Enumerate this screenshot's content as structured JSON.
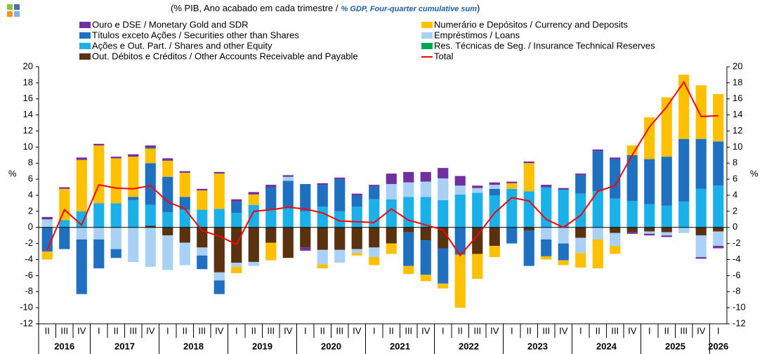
{
  "chart_data": {
    "type": "stacked_bar_line",
    "title": "(% PIB, Ano acabado em cada trimestre  /",
    "subtitle": "% GDP, Four-quarter cumulative sum",
    "title_end": ")",
    "ylabel": "%",
    "y2label": "%",
    "categories": [
      "II",
      "III",
      "IV",
      "I",
      "II",
      "III",
      "IV",
      "I",
      "II",
      "III",
      "IV",
      "I",
      "II",
      "III",
      "IV",
      "I",
      "II",
      "III",
      "IV",
      "I",
      "II",
      "III",
      "IV",
      "I",
      "II",
      "III",
      "IV",
      "I",
      "II",
      "III",
      "IV",
      "I",
      "II",
      "III",
      "IV",
      "I",
      "II",
      "III",
      "IV",
      "I"
    ],
    "year_labels": [
      "2016",
      "2017",
      "2018",
      "2019",
      "2020",
      "2021",
      "2022",
      "2023",
      "2024",
      "2025",
      "2026"
    ],
    "ylim": [
      -12,
      20
    ],
    "yticks": [
      -12,
      -10,
      -8,
      -6,
      -4,
      -2,
      0,
      2,
      4,
      6,
      8,
      10,
      12,
      14,
      16,
      18,
      20
    ],
    "y2lim": [
      -12,
      20
    ],
    "y2ticks": [
      -12,
      -10,
      -8,
      -6,
      -4,
      -2,
      0,
      2,
      4,
      6,
      8,
      10,
      12,
      14,
      16,
      18,
      20
    ],
    "series": [
      {
        "name": "Ouro e DSE / Monetary Gold and SDR",
        "color": "#7030a0",
        "values": [
          0.3,
          0.2,
          0.3,
          0.2,
          0.2,
          0.3,
          0.3,
          0.3,
          0.2,
          0.2,
          0.2,
          0.3,
          0.3,
          0.3,
          0.2,
          -0.4,
          0.2,
          0.2,
          0.2,
          0.2,
          1.3,
          1.3,
          1.2,
          1.3,
          1.2,
          0.3,
          0.3,
          0.2,
          0.2,
          0.3,
          0.2,
          0.2,
          0.2,
          0.2,
          -0.2,
          -0.2,
          -0.2,
          0,
          -0.2,
          -0.3
        ]
      },
      {
        "name": "Títulos exceto Ações / Securities other than Shares",
        "color": "#1f70c1",
        "values": [
          -3.0,
          -2.7,
          -6.8,
          -3.6,
          -1.1,
          0.4,
          5.2,
          4.4,
          1.6,
          -1.7,
          -1.7,
          1.4,
          0,
          2.8,
          3.4,
          3.4,
          2.7,
          4.0,
          1.4,
          1.6,
          0,
          -4.2,
          -4.3,
          -4.4,
          -3.4,
          0,
          0.8,
          -2.0,
          -4.4,
          -2.1,
          -2.1,
          2.3,
          5.0,
          4.9,
          5.7,
          5.6,
          6.1,
          7.8,
          6.2,
          5.5
        ]
      },
      {
        "name": "Ações e Out. Part. / Shares and other Equity",
        "color": "#1ab0ea",
        "values": [
          0,
          0.9,
          2.0,
          3.0,
          3.0,
          3.4,
          2.6,
          1.9,
          2.2,
          2.2,
          2.3,
          1.8,
          2.8,
          2.2,
          2.4,
          2.0,
          2.6,
          2.0,
          2.6,
          3.5,
          3.5,
          3.8,
          3.8,
          3.4,
          4.1,
          4.3,
          4.0,
          4.8,
          4.5,
          5.0,
          4.7,
          4.2,
          4.5,
          3.6,
          3.3,
          2.9,
          2.7,
          3.2,
          4.8,
          5.2
        ]
      },
      {
        "name": "Out. Débitos e Créditos / Other Accounts Receivable and Payable",
        "color": "#5b3210",
        "values": [
          0,
          0,
          0,
          0,
          0,
          0,
          0.2,
          -1.0,
          -1.9,
          -2.5,
          -5.6,
          -4.4,
          -4.3,
          -1.9,
          -3.8,
          -2.5,
          -2.8,
          -2.8,
          -2.7,
          -2.5,
          -2.0,
          -0.6,
          -1.6,
          -2.6,
          0,
          -3.3,
          -2.3,
          0,
          -0.4,
          0,
          0,
          -1.3,
          0,
          -0.7,
          -0.6,
          -0.5,
          -0.6,
          0,
          -1.0,
          -0.5
        ]
      },
      {
        "name": "Numerário e Depósitos / Currency and Deposits",
        "color": "#ffc000",
        "values": [
          -1.0,
          3.9,
          6.4,
          7.2,
          5.6,
          5.0,
          1.8,
          2.0,
          3.0,
          2.4,
          4.4,
          -0.8,
          1.3,
          -2.2,
          0,
          0,
          -0.5,
          0,
          -0.3,
          -1.0,
          -1.3,
          -1.0,
          -0.8,
          -0.6,
          -6.6,
          -3.1,
          -1.4,
          0.7,
          3.5,
          -0.4,
          -0.6,
          -1.8,
          -3.6,
          -1.0,
          1.2,
          5.2,
          7.4,
          8.0,
          6.7,
          5.9
        ]
      },
      {
        "name": "Empréstimos / Loans",
        "color": "#a9d0f5",
        "values": [
          1.0,
          0,
          -1.5,
          -1.5,
          -2.7,
          -4.3,
          -4.9,
          -4.3,
          -2.8,
          -1.0,
          -1.0,
          -0.5,
          -0.5,
          0,
          0.5,
          0,
          -1.8,
          -1.6,
          -0.5,
          -1.2,
          1.9,
          1.8,
          1.9,
          2.7,
          1.1,
          0.6,
          0.5,
          0,
          0,
          -1.5,
          -2.0,
          -1.9,
          -1.5,
          -1.6,
          0,
          -0.3,
          -0.4,
          -0.7,
          -2.7,
          -1.8
        ]
      },
      {
        "name": "Res. Técnicas de Seg. / Insurance Technical Reserves",
        "color": "#00a651",
        "values": [
          0,
          0,
          0,
          0,
          0,
          0,
          0.1,
          0,
          0,
          0,
          0,
          0,
          0,
          0,
          0,
          0,
          0,
          0,
          0,
          0,
          0,
          0,
          0,
          0,
          0,
          0,
          0,
          0,
          0,
          0,
          0,
          0,
          0,
          0,
          0,
          0,
          0,
          0,
          0,
          0
        ]
      },
      {
        "name": "Total",
        "color": "#ff0000",
        "line": true,
        "values": [
          -2.8,
          2.2,
          0.3,
          5.3,
          4.9,
          4.8,
          5.2,
          3.2,
          2.3,
          -0.4,
          -1.1,
          -2.1,
          2.0,
          2.2,
          2.5,
          2.3,
          1.8,
          0.8,
          0.7,
          0.6,
          2.3,
          0.9,
          0.3,
          -0.3,
          -3.5,
          -1.0,
          1.8,
          3.7,
          3.3,
          1.0,
          0.0,
          1.5,
          4.5,
          5.2,
          9.0,
          12.5,
          15.0,
          18.1,
          13.8,
          13.9
        ]
      }
    ]
  }
}
